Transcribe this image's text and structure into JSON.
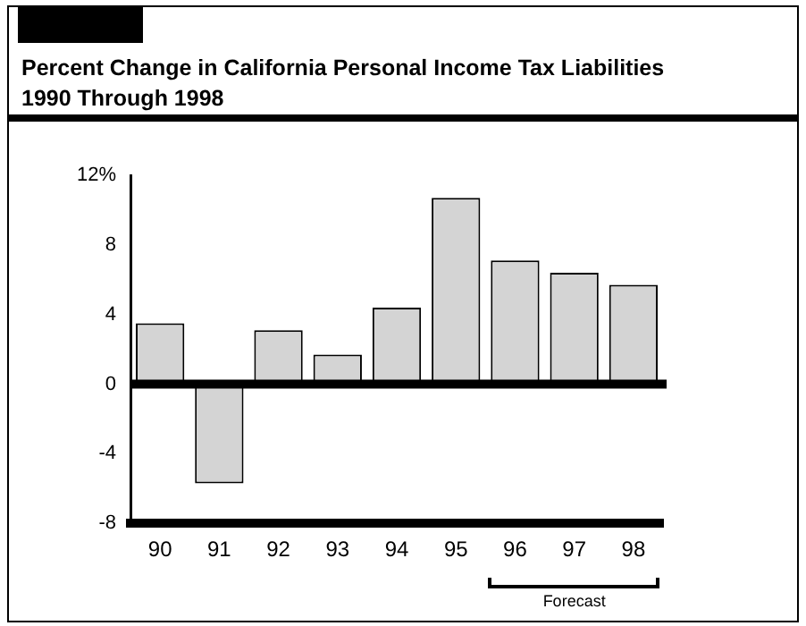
{
  "chart_data": {
    "type": "bar",
    "title": "Percent Change in California Personal Income Tax Liabilities",
    "subtitle": "1990 Through 1998",
    "categories": [
      "90",
      "91",
      "92",
      "93",
      "94",
      "95",
      "96",
      "97",
      "98"
    ],
    "values": [
      3.5,
      -5.7,
      3.1,
      1.7,
      4.4,
      10.7,
      7.1,
      6.4,
      5.7
    ],
    "color": "#d4d4d4",
    "ylim": [
      -8,
      12
    ],
    "yticks": [
      {
        "value": 12,
        "label": "12%"
      },
      8,
      4,
      0,
      -4,
      -8
    ],
    "grid": false,
    "legend": false,
    "ref_lines": [
      {
        "axis": "y",
        "value": 0,
        "color": "#000000"
      }
    ],
    "annotations": [
      "Forecast"
    ]
  }
}
